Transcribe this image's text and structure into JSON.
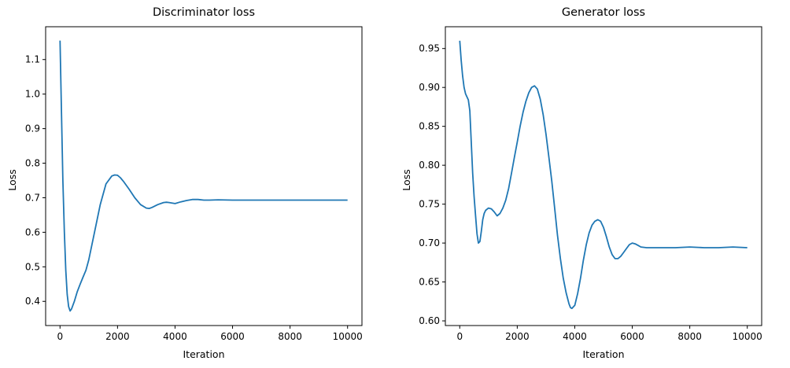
{
  "chart_data": [
    {
      "type": "line",
      "title": "Discriminator loss",
      "xlabel": "Iteration",
      "ylabel": "Loss",
      "xlim": [
        -500,
        10500
      ],
      "ylim": [
        0.33,
        1.195
      ],
      "xticks": [
        0,
        2000,
        4000,
        6000,
        8000,
        10000
      ],
      "xtick_labels": [
        "0",
        "2000",
        "4000",
        "6000",
        "8000",
        "10000"
      ],
      "yticks": [
        0.4,
        0.5,
        0.6,
        0.7,
        0.8,
        0.9,
        1.0,
        1.1
      ],
      "ytick_labels": [
        "0.4",
        "0.5",
        "0.6",
        "0.7",
        "0.8",
        "0.9",
        "1.0",
        "1.1"
      ],
      "grid": false,
      "color": "#1f77b4",
      "series": [
        {
          "x": [
            0,
            50,
            100,
            150,
            200,
            250,
            300,
            350,
            400,
            500,
            600,
            700,
            800,
            900,
            1000,
            1200,
            1400,
            1600,
            1800,
            1900,
            2000,
            2100,
            2200,
            2400,
            2600,
            2800,
            3000,
            3100,
            3200,
            3400,
            3600,
            3700,
            3800,
            4000,
            4200,
            4400,
            4600,
            4800,
            5000,
            5200,
            5500,
            6000,
            7000,
            8000,
            9000,
            10000
          ],
          "y": [
            1.155,
            0.95,
            0.75,
            0.6,
            0.49,
            0.42,
            0.385,
            0.372,
            0.378,
            0.4,
            0.428,
            0.45,
            0.47,
            0.49,
            0.52,
            0.6,
            0.68,
            0.74,
            0.763,
            0.766,
            0.765,
            0.758,
            0.748,
            0.725,
            0.7,
            0.68,
            0.67,
            0.669,
            0.672,
            0.68,
            0.686,
            0.687,
            0.686,
            0.683,
            0.688,
            0.692,
            0.695,
            0.695,
            0.693,
            0.693,
            0.694,
            0.693,
            0.693,
            0.693,
            0.693,
            0.693
          ]
        }
      ]
    },
    {
      "type": "line",
      "title": "Generator loss",
      "xlabel": "Iteration",
      "ylabel": "Loss",
      "xlim": [
        -500,
        10500
      ],
      "ylim": [
        0.594,
        0.978
      ],
      "xticks": [
        0,
        2000,
        4000,
        6000,
        8000,
        10000
      ],
      "xtick_labels": [
        "0",
        "2000",
        "4000",
        "6000",
        "8000",
        "10000"
      ],
      "yticks": [
        0.6,
        0.65,
        0.7,
        0.75,
        0.8,
        0.85,
        0.9,
        0.95
      ],
      "ytick_labels": [
        "0.60",
        "0.65",
        "0.70",
        "0.75",
        "0.80",
        "0.85",
        "0.90",
        "0.95"
      ],
      "grid": false,
      "color": "#1f77b4",
      "series": [
        {
          "x": [
            0,
            50,
            100,
            150,
            200,
            250,
            300,
            350,
            400,
            450,
            500,
            550,
            600,
            650,
            700,
            750,
            800,
            850,
            900,
            1000,
            1100,
            1200,
            1300,
            1400,
            1500,
            1600,
            1700,
            1800,
            1900,
            2000,
            2100,
            2200,
            2300,
            2400,
            2500,
            2600,
            2700,
            2800,
            2900,
            3000,
            3100,
            3200,
            3300,
            3400,
            3500,
            3600,
            3700,
            3800,
            3850,
            3900,
            4000,
            4100,
            4200,
            4300,
            4400,
            4500,
            4600,
            4700,
            4800,
            4900,
            5000,
            5100,
            5200,
            5300,
            5400,
            5500,
            5600,
            5700,
            5800,
            5900,
            6000,
            6100,
            6200,
            6300,
            6500,
            7000,
            7500,
            8000,
            8500,
            9000,
            9500,
            10000
          ],
          "y": [
            0.96,
            0.935,
            0.915,
            0.9,
            0.892,
            0.888,
            0.884,
            0.87,
            0.83,
            0.79,
            0.76,
            0.735,
            0.712,
            0.7,
            0.702,
            0.715,
            0.73,
            0.738,
            0.742,
            0.745,
            0.744,
            0.74,
            0.735,
            0.738,
            0.745,
            0.755,
            0.77,
            0.79,
            0.81,
            0.83,
            0.85,
            0.868,
            0.882,
            0.893,
            0.9,
            0.902,
            0.898,
            0.885,
            0.865,
            0.84,
            0.81,
            0.78,
            0.745,
            0.71,
            0.68,
            0.655,
            0.636,
            0.622,
            0.617,
            0.616,
            0.62,
            0.635,
            0.655,
            0.678,
            0.698,
            0.713,
            0.723,
            0.728,
            0.73,
            0.728,
            0.72,
            0.708,
            0.695,
            0.685,
            0.68,
            0.68,
            0.683,
            0.688,
            0.693,
            0.698,
            0.7,
            0.699,
            0.697,
            0.695,
            0.694,
            0.694,
            0.694,
            0.695,
            0.694,
            0.694,
            0.695,
            0.694
          ]
        }
      ]
    }
  ]
}
